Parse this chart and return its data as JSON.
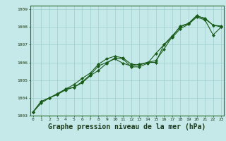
{
  "xlabel": "Graphe pression niveau de la mer (hPa)",
  "xlabel_fontsize": 7,
  "background_color": "#c5e8e8",
  "grid_color": "#9ecece",
  "line_color": "#1a5c1a",
  "marker_color": "#1a5c1a",
  "ylim": [
    1003.0,
    1009.2
  ],
  "xlim": [
    -0.3,
    23.3
  ],
  "yticks": [
    1003,
    1004,
    1005,
    1006,
    1007,
    1008,
    1009
  ],
  "xticks": [
    0,
    1,
    2,
    3,
    4,
    5,
    6,
    7,
    8,
    9,
    10,
    11,
    12,
    13,
    14,
    15,
    16,
    17,
    18,
    19,
    20,
    21,
    22,
    23
  ],
  "series": [
    [
      1003.2,
      1003.8,
      1004.0,
      1004.2,
      1004.5,
      1004.6,
      1004.9,
      1005.3,
      1005.8,
      1006.0,
      1006.2,
      1005.95,
      1005.8,
      1005.9,
      1006.0,
      1006.0,
      1007.0,
      1007.5,
      1008.0,
      1008.2,
      1008.6,
      1008.5,
      1008.1,
      1008.0
    ],
    [
      1003.2,
      1003.7,
      1004.0,
      1004.25,
      1004.5,
      1004.75,
      1005.1,
      1005.4,
      1005.9,
      1006.2,
      1006.35,
      1006.25,
      1005.9,
      1005.85,
      1006.0,
      1006.1,
      1006.75,
      1007.45,
      1008.05,
      1008.2,
      1008.65,
      1008.45,
      1008.1,
      1008.05
    ],
    [
      1003.2,
      1003.8,
      1004.0,
      1004.2,
      1004.45,
      1004.6,
      1004.85,
      1005.25,
      1005.55,
      1005.95,
      1006.25,
      1006.2,
      1005.75,
      1005.75,
      1005.95,
      1006.5,
      1007.0,
      1007.4,
      1007.9,
      1008.15,
      1008.55,
      1008.4,
      1007.55,
      1008.0
    ]
  ]
}
